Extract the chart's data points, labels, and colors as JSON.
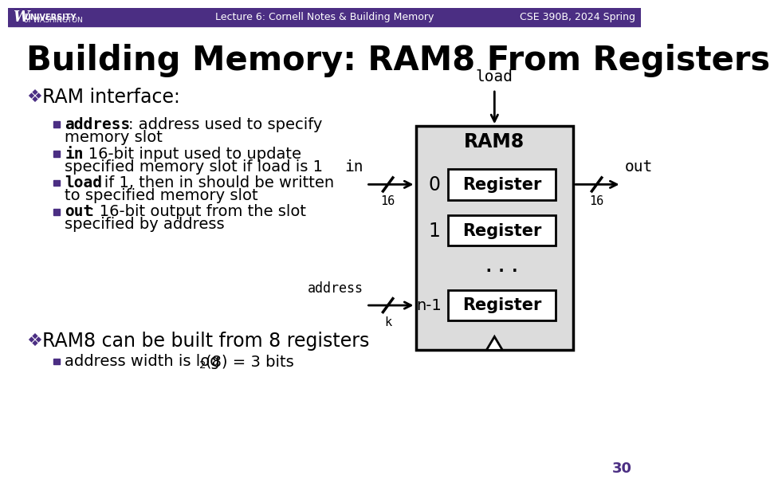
{
  "title": "Building Memory: RAM8 From Registers",
  "header_bg": "#4b2e83",
  "header_text_color": "#ffffff",
  "header_center": "Lecture 6: Cornell Notes & Building Memory",
  "header_right": "CSE 390B, 2024 Spring",
  "slide_bg": "#ffffff",
  "title_color": "#000000",
  "bullet_color": "#4b2e83",
  "text_color": "#000000",
  "page_number": "30",
  "page_number_color": "#4b2e83",
  "ram_box_color": "#dcdcdc",
  "register_box_color": "#ffffff",
  "diagram_text_color": "#000000"
}
